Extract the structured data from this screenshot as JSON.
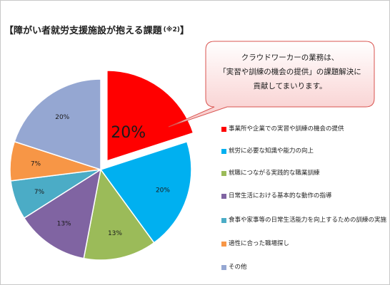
{
  "title": "【障がい者就労支援施設が抱える課題",
  "title_note": "(※2)",
  "title_end": "】",
  "callout": {
    "line1": "クラウドワーカーの業務は、",
    "line2": "「実習や訓練の機会の提供」の課題解決に",
    "line3": "貢献してまいります。"
  },
  "chart_data": {
    "type": "pie",
    "title": "",
    "exploded": "事業所や企業での実習や訓練の機会の提供",
    "legend_position": "right",
    "slices": [
      {
        "label": "事業所や企業での実習や訓練の機会の提供",
        "value": 20,
        "value_label": "20%",
        "color": "#ff0000"
      },
      {
        "label": "就労に必要な知識や能力の向上",
        "value": 20,
        "value_label": "20%",
        "color": "#00b0f0"
      },
      {
        "label": "就職につながる実践的な職業訓練",
        "value": 13,
        "value_label": "13%",
        "color": "#9bbb59"
      },
      {
        "label": "日常生活における基本的な動作の指導",
        "value": 13,
        "value_label": "13%",
        "color": "#8064a2"
      },
      {
        "label": "食事や家事等の日常生活能力を向上するための訓練の実施",
        "value": 7,
        "value_label": "7%",
        "color": "#4bacc6"
      },
      {
        "label": "適性に合った職場探し",
        "value": 7,
        "value_label": "7%",
        "color": "#f79646"
      },
      {
        "label": "その他",
        "value": 20,
        "value_label": "20%",
        "color": "#95a7d2"
      }
    ]
  }
}
